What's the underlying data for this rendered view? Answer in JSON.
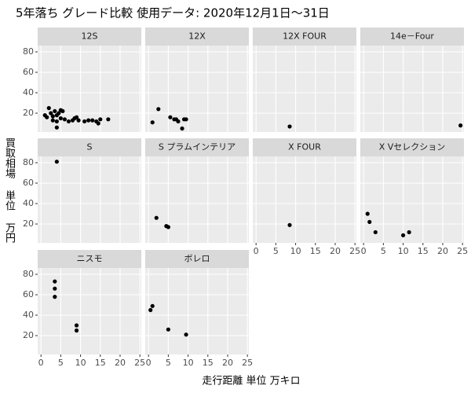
{
  "chart_data": {
    "type": "scatter",
    "title": "5年落ち グレード比較 使用データ: 2020年12月1日～31日",
    "x_label": "走行距離 単位 万キロ",
    "y_label": "買取相場 単位 万円",
    "color": "#000000",
    "xlim": [
      -0.83,
      25.36
    ],
    "xticks": [
      0,
      5,
      10,
      15,
      20,
      25
    ],
    "ylim": [
      1.55,
      86.15
    ],
    "yticks": [
      20,
      40,
      60,
      80
    ],
    "grid": true,
    "facets": [
      {
        "name": "12S",
        "x": [
          1,
          1.5,
          2,
          2.5,
          3,
          3,
          3.5,
          4,
          4,
          4,
          4.5,
          5,
          5,
          5.5,
          6,
          7,
          8,
          8.5,
          9,
          9.5,
          11,
          12,
          13,
          14,
          14.5,
          15,
          17
        ],
        "y": [
          18,
          16,
          25,
          20,
          13,
          17,
          22,
          12,
          6,
          18,
          20,
          15,
          23,
          22,
          14,
          12,
          13,
          15,
          16,
          13,
          12,
          13,
          13,
          12,
          10,
          14,
          14
        ]
      },
      {
        "name": "12X",
        "x": [
          1,
          2.5,
          5.5,
          6.5,
          7,
          7.5,
          8.5,
          9,
          9.5
        ],
        "y": [
          11,
          24,
          16,
          14,
          14,
          12,
          5,
          14,
          14
        ]
      },
      {
        "name": "12X  FOUR",
        "x": [
          8.5
        ],
        "y": [
          7
        ]
      },
      {
        "name": "14e－Four",
        "x": [
          24.5
        ],
        "y": [
          8
        ]
      },
      {
        "name": "S",
        "x": [
          4
        ],
        "y": [
          81
        ]
      },
      {
        "name": "S  プラムインテリア",
        "x": [
          2,
          4.5,
          5
        ],
        "y": [
          26,
          18,
          17
        ]
      },
      {
        "name": "X  FOUR",
        "x": [
          8.5
        ],
        "y": [
          19
        ]
      },
      {
        "name": "X  Vセレクション",
        "x": [
          1,
          1.5,
          3,
          10,
          11.5
        ],
        "y": [
          30,
          22,
          12,
          9,
          12
        ]
      },
      {
        "name": "ニスモ",
        "x": [
          3.5,
          3.5,
          3.5,
          9,
          9
        ],
        "y": [
          73,
          66,
          58,
          30,
          25
        ]
      },
      {
        "name": "ボレロ",
        "x": [
          0.5,
          1,
          5,
          9.5
        ],
        "y": [
          45,
          49,
          26,
          21
        ]
      }
    ]
  }
}
